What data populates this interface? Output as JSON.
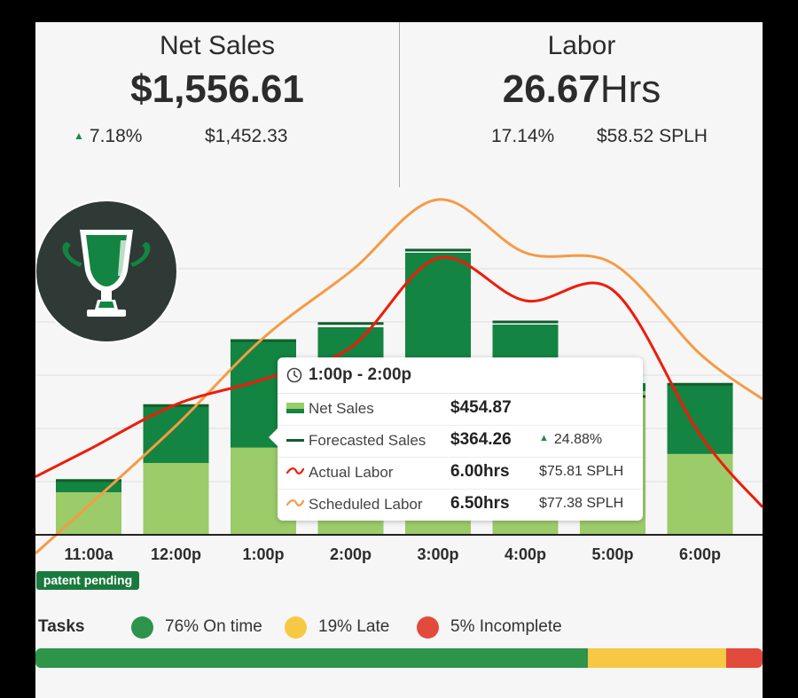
{
  "net_sales": {
    "title": "Net Sales",
    "value": "$1,556.61",
    "change": "7.18%",
    "forecast": "$1,452.33"
  },
  "labor": {
    "title": "Labor",
    "value": "26.67",
    "unit": "Hrs",
    "percent": "17.14%",
    "splh": "$58.52 SPLH"
  },
  "badge": {
    "icon": "trophy-icon"
  },
  "chart_data": {
    "type": "bar",
    "categories": [
      "11:00a",
      "12:00p",
      "1:00p",
      "2:00p",
      "3:00p",
      "4:00p",
      "5:00p",
      "6:00p"
    ],
    "series": [
      {
        "name": "Net Sales (base, light)",
        "values": [
          80,
          135,
          164,
          185,
          195,
          215,
          270,
          152
        ]
      },
      {
        "name": "Net Sales (total)",
        "values": [
          100,
          243,
          365,
          390,
          530,
          395,
          285,
          285
        ]
      },
      {
        "name": "Forecasted Sales",
        "values": [
          102,
          243,
          365,
          397,
          535,
          400,
          260,
          283
        ]
      },
      {
        "name": "Actual Labor",
        "values": [
          160,
          245,
          292,
          352,
          520,
          440,
          460,
          188
        ]
      },
      {
        "name": "Scheduled Labor",
        "values": [
          55,
          205,
          370,
          495,
          630,
          530,
          510,
          340
        ]
      }
    ],
    "ylim": [
      0,
      700
    ],
    "colors": {
      "bar_light": "#9ccb6a",
      "bar_dark": "#138441",
      "forecast": "#0f5e2b",
      "actual": "#ee1c0a",
      "scheduled": "#f59b45"
    }
  },
  "tooltip": {
    "time_range": "1:00p - 2:00p",
    "rows": [
      {
        "label": "Net Sales",
        "value": "$454.87",
        "extra": ""
      },
      {
        "label": "Forecasted Sales",
        "value": "$364.26",
        "extra": "24.88%"
      },
      {
        "label": "Actual Labor",
        "value": "6.00hrs",
        "extra": "$75.81 SPLH"
      },
      {
        "label": "Scheduled Labor",
        "value": "6.50hrs",
        "extra": "$77.38 SPLH"
      }
    ]
  },
  "patent": "patent pending",
  "tasks": {
    "title": "Tasks",
    "on_time": {
      "label": "76% On time",
      "value": 76,
      "color": "#2d944a"
    },
    "late": {
      "label": "19% Late",
      "value": 19,
      "color": "#f7c843"
    },
    "incomplete": {
      "label": "5% Incomplete",
      "value": 5,
      "color": "#e24a3b"
    }
  }
}
